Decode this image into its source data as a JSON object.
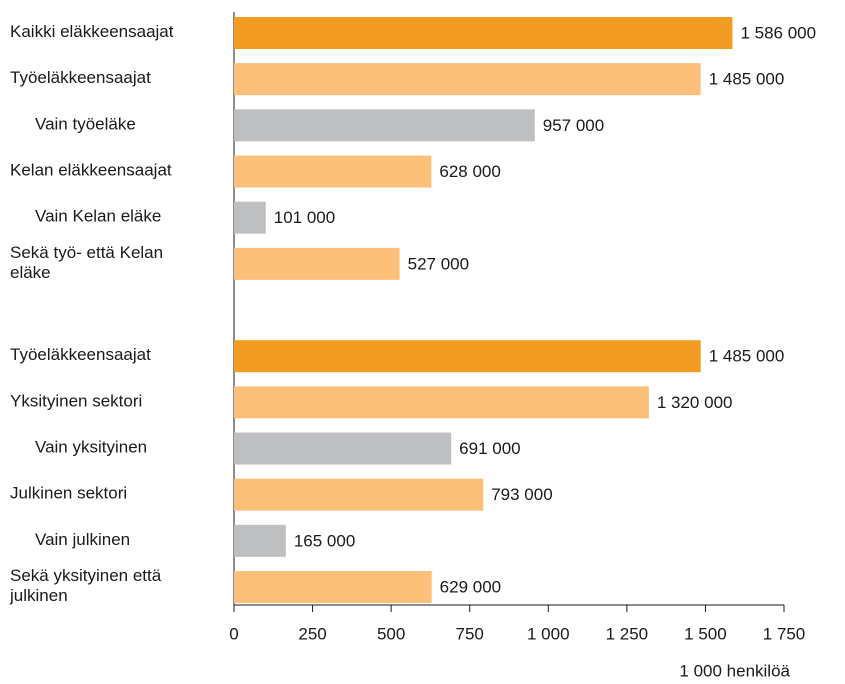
{
  "chart_data": {
    "type": "bar",
    "orientation": "horizontal",
    "categories": [
      "Kaikki eläkkeensaajat",
      "Työeläkkeensaajat",
      "Vain työeläke",
      "Kelan eläkkeensaajat",
      "Vain Kelan eläke",
      "Sekä työ- että Kelan\neläke",
      null,
      "Työeläkkeensaajat",
      "Yksityinen sektori",
      "Vain yksityinen",
      "Julkinen sektori",
      "Vain julkinen",
      "Sekä yksityinen että\njulkinen"
    ],
    "values": [
      1586,
      1485,
      957,
      628,
      101,
      527,
      null,
      1485,
      1320,
      691,
      793,
      165,
      629
    ],
    "value_labels": [
      "1 586 000",
      "1 485 000",
      "957 000",
      "628 000",
      "101 000",
      "527 000",
      null,
      "1 485 000",
      "1 320 000",
      "691 000",
      "793 000",
      "165 000",
      "629 000"
    ],
    "colors": [
      "#f39c24",
      "#fcc07a",
      "#bdbfc1",
      "#fcc07a",
      "#bdbfc1",
      "#fcc07a",
      null,
      "#f39c24",
      "#fcc07a",
      "#bdbfc1",
      "#fcc07a",
      "#bdbfc1",
      "#fcc07a"
    ],
    "xlabel": "1 000 henkilöä",
    "xlim": [
      0,
      1750
    ],
    "xticks": [
      0,
      250,
      500,
      750,
      {
        "value": 1000,
        "label": "1 000"
      },
      {
        "value": 1250,
        "label": "1 250"
      },
      {
        "value": 1500,
        "label": "1 500"
      },
      {
        "value": 1750,
        "label": "1 750"
      }
    ],
    "grid": false
  }
}
